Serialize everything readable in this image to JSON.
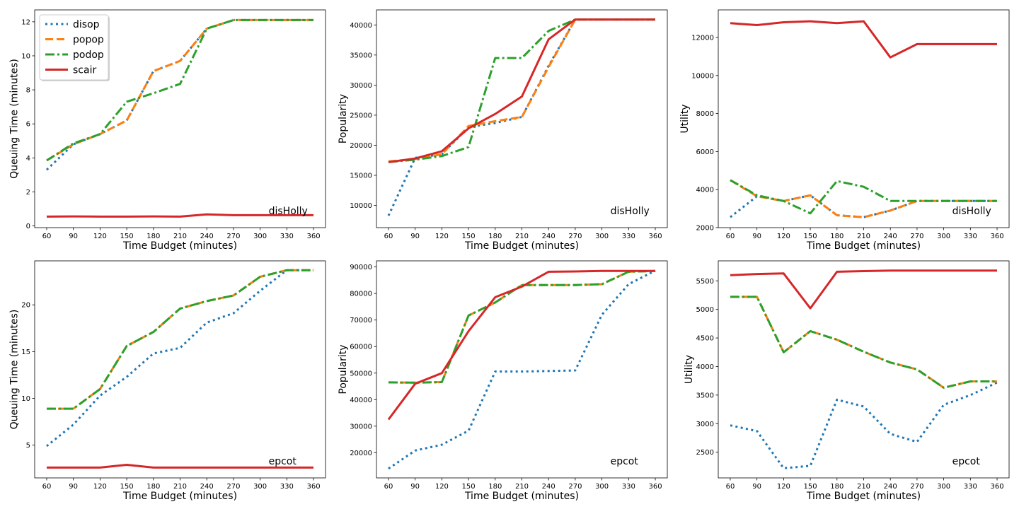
{
  "chart_data": [
    {
      "type": "line",
      "x": [
        60,
        90,
        120,
        150,
        180,
        210,
        240,
        270,
        300,
        330,
        360
      ],
      "xlabel": "Time Budget (minutes)",
      "ylabel": "Queuing Time (minutes)",
      "ylim": [
        -0.1,
        12.7
      ],
      "yticks": [
        0,
        2,
        4,
        6,
        8,
        10,
        12
      ],
      "annotation": "disHolly",
      "legend": "upper-left",
      "series": [
        {
          "name": "disop",
          "style": "dotted",
          "color": "#1f77b4",
          "values": [
            3.3,
            4.8,
            5.4,
            6.2,
            9.1,
            9.7,
            11.6,
            12.1,
            12.1,
            12.1,
            12.1
          ]
        },
        {
          "name": "popop",
          "style": "dashed",
          "color": "#ff7f0e",
          "values": [
            3.85,
            4.8,
            5.4,
            6.2,
            9.1,
            9.7,
            11.6,
            12.1,
            12.1,
            12.1,
            12.1
          ]
        },
        {
          "name": "podop",
          "style": "dashdot",
          "color": "#2ca02c",
          "values": [
            3.85,
            4.85,
            5.4,
            7.3,
            7.8,
            8.35,
            11.6,
            12.1,
            12.1,
            12.1,
            12.1
          ]
        },
        {
          "name": "scair",
          "style": "solid",
          "color": "#d62728",
          "values": [
            0.55,
            0.56,
            0.55,
            0.55,
            0.56,
            0.55,
            0.68,
            0.63,
            0.63,
            0.63,
            0.63
          ]
        }
      ]
    },
    {
      "type": "line",
      "x": [
        60,
        90,
        120,
        150,
        180,
        210,
        240,
        270,
        300,
        330,
        360
      ],
      "xlabel": "Time Budget (minutes)",
      "ylabel": "Popularity",
      "ylim": [
        6300,
        42500
      ],
      "yticks": [
        10000,
        15000,
        20000,
        25000,
        30000,
        35000,
        40000
      ],
      "annotation": "disHolly",
      "series": [
        {
          "name": "disop",
          "style": "dotted",
          "color": "#1f77b4",
          "values": [
            8300,
            17900,
            18500,
            23000,
            23700,
            24700,
            33200,
            40900,
            40900,
            40900,
            40900
          ]
        },
        {
          "name": "popop",
          "style": "dashed",
          "color": "#ff7f0e",
          "values": [
            17300,
            17700,
            18500,
            23200,
            24000,
            24700,
            33000,
            40900,
            40900,
            40900,
            40900
          ]
        },
        {
          "name": "podop",
          "style": "dashdot",
          "color": "#2ca02c",
          "values": [
            17200,
            17600,
            18200,
            19700,
            34500,
            34500,
            39000,
            40900,
            40900,
            40900,
            40900
          ]
        },
        {
          "name": "scair",
          "style": "solid",
          "color": "#d62728",
          "values": [
            17200,
            17800,
            19000,
            22800,
            25200,
            28100,
            37600,
            40900,
            40900,
            40900,
            40900
          ]
        }
      ]
    },
    {
      "type": "line",
      "x": [
        60,
        90,
        120,
        150,
        180,
        210,
        240,
        270,
        300,
        330,
        360
      ],
      "xlabel": "Time Budget (minutes)",
      "ylabel": "Utility",
      "ylim": [
        2000,
        13450
      ],
      "yticks": [
        2000,
        4000,
        6000,
        8000,
        10000,
        12000
      ],
      "annotation": "disHolly",
      "series": [
        {
          "name": "disop",
          "style": "dotted",
          "color": "#1f77b4",
          "values": [
            2550,
            3650,
            3400,
            3700,
            2650,
            2550,
            2900,
            3400,
            3400,
            3400,
            3400
          ]
        },
        {
          "name": "popop",
          "style": "dashed",
          "color": "#ff7f0e",
          "values": [
            4500,
            3650,
            3400,
            3700,
            2650,
            2550,
            2900,
            3400,
            3400,
            3400,
            3400
          ]
        },
        {
          "name": "podop",
          "style": "dashdot",
          "color": "#2ca02c",
          "values": [
            4500,
            3700,
            3400,
            2750,
            4450,
            4150,
            3400,
            3400,
            3400,
            3400,
            3400
          ]
        },
        {
          "name": "scair",
          "style": "solid",
          "color": "#d62728",
          "values": [
            12750,
            12650,
            12800,
            12850,
            12750,
            12850,
            10950,
            11650,
            11650,
            11650,
            11650
          ]
        }
      ]
    },
    {
      "type": "line",
      "x": [
        60,
        90,
        120,
        150,
        180,
        210,
        240,
        270,
        300,
        330,
        360
      ],
      "xlabel": "Time Budget (minutes)",
      "ylabel": "Queuing Time (minutes)",
      "ylim": [
        1.5,
        24.7
      ],
      "yticks": [
        5,
        10,
        15,
        20
      ],
      "annotation": "epcot",
      "series": [
        {
          "name": "disop",
          "style": "dotted",
          "color": "#1f77b4",
          "values": [
            4.9,
            7.2,
            10.3,
            12.3,
            14.8,
            15.4,
            18.1,
            19.1,
            21.5,
            23.7,
            23.7
          ]
        },
        {
          "name": "popop",
          "style": "dashed",
          "color": "#ff7f0e",
          "values": [
            8.9,
            8.9,
            11.0,
            15.6,
            17.1,
            19.6,
            20.4,
            21.0,
            23.0,
            23.7,
            23.7
          ]
        },
        {
          "name": "podop",
          "style": "dashdot",
          "color": "#2ca02c",
          "values": [
            8.9,
            8.9,
            11.0,
            15.6,
            17.1,
            19.6,
            20.4,
            21.0,
            23.0,
            23.7,
            23.7
          ]
        },
        {
          "name": "scair",
          "style": "solid",
          "color": "#d62728",
          "values": [
            2.6,
            2.6,
            2.6,
            2.9,
            2.6,
            2.6,
            2.6,
            2.6,
            2.6,
            2.6,
            2.6
          ]
        }
      ]
    },
    {
      "type": "line",
      "x": [
        60,
        90,
        120,
        150,
        180,
        210,
        240,
        270,
        300,
        330,
        360
      ],
      "xlabel": "Time Budget (minutes)",
      "ylabel": "Popularity",
      "ylim": [
        10500,
        92300
      ],
      "yticks": [
        20000,
        30000,
        40000,
        50000,
        60000,
        70000,
        80000,
        90000
      ],
      "annotation": "epcot",
      "series": [
        {
          "name": "disop",
          "style": "dotted",
          "color": "#1f77b4",
          "values": [
            14000,
            20800,
            23000,
            28300,
            50600,
            50600,
            50800,
            51000,
            72000,
            83500,
            88600
          ]
        },
        {
          "name": "popop",
          "style": "dashed",
          "color": "#ff7f0e",
          "values": [
            46500,
            46400,
            46600,
            71700,
            76600,
            83200,
            83200,
            83200,
            83500,
            88200,
            88500
          ]
        },
        {
          "name": "podop",
          "style": "dashdot",
          "color": "#2ca02c",
          "values": [
            46500,
            46400,
            46600,
            71700,
            76600,
            83200,
            83200,
            83200,
            83500,
            88200,
            88500
          ]
        },
        {
          "name": "scair",
          "style": "solid",
          "color": "#d62728",
          "values": [
            32500,
            46000,
            50000,
            65800,
            78600,
            82600,
            88200,
            88300,
            88500,
            88500,
            88500
          ]
        }
      ]
    },
    {
      "type": "line",
      "x": [
        60,
        90,
        120,
        150,
        180,
        210,
        240,
        270,
        300,
        330,
        360
      ],
      "xlabel": "Time Budget (minutes)",
      "ylabel": "Utility",
      "ylim": [
        2050,
        5850
      ],
      "yticks": [
        2500,
        3000,
        3500,
        4000,
        4500,
        5000,
        5500
      ],
      "annotation": "epcot",
      "series": [
        {
          "name": "disop",
          "style": "dotted",
          "color": "#1f77b4",
          "values": [
            2970,
            2870,
            2220,
            2260,
            3420,
            3300,
            2820,
            2680,
            3330,
            3500,
            3720
          ]
        },
        {
          "name": "popop",
          "style": "dashed",
          "color": "#ff7f0e",
          "values": [
            5220,
            5220,
            4250,
            4620,
            4470,
            4260,
            4070,
            3950,
            3630,
            3740,
            3740
          ]
        },
        {
          "name": "podop",
          "style": "dashdot",
          "color": "#2ca02c",
          "values": [
            5220,
            5220,
            4250,
            4620,
            4470,
            4260,
            4070,
            3950,
            3630,
            3740,
            3740
          ]
        },
        {
          "name": "scair",
          "style": "solid",
          "color": "#d62728",
          "values": [
            5600,
            5620,
            5630,
            5020,
            5660,
            5670,
            5680,
            5680,
            5680,
            5680,
            5680
          ]
        }
      ]
    }
  ]
}
